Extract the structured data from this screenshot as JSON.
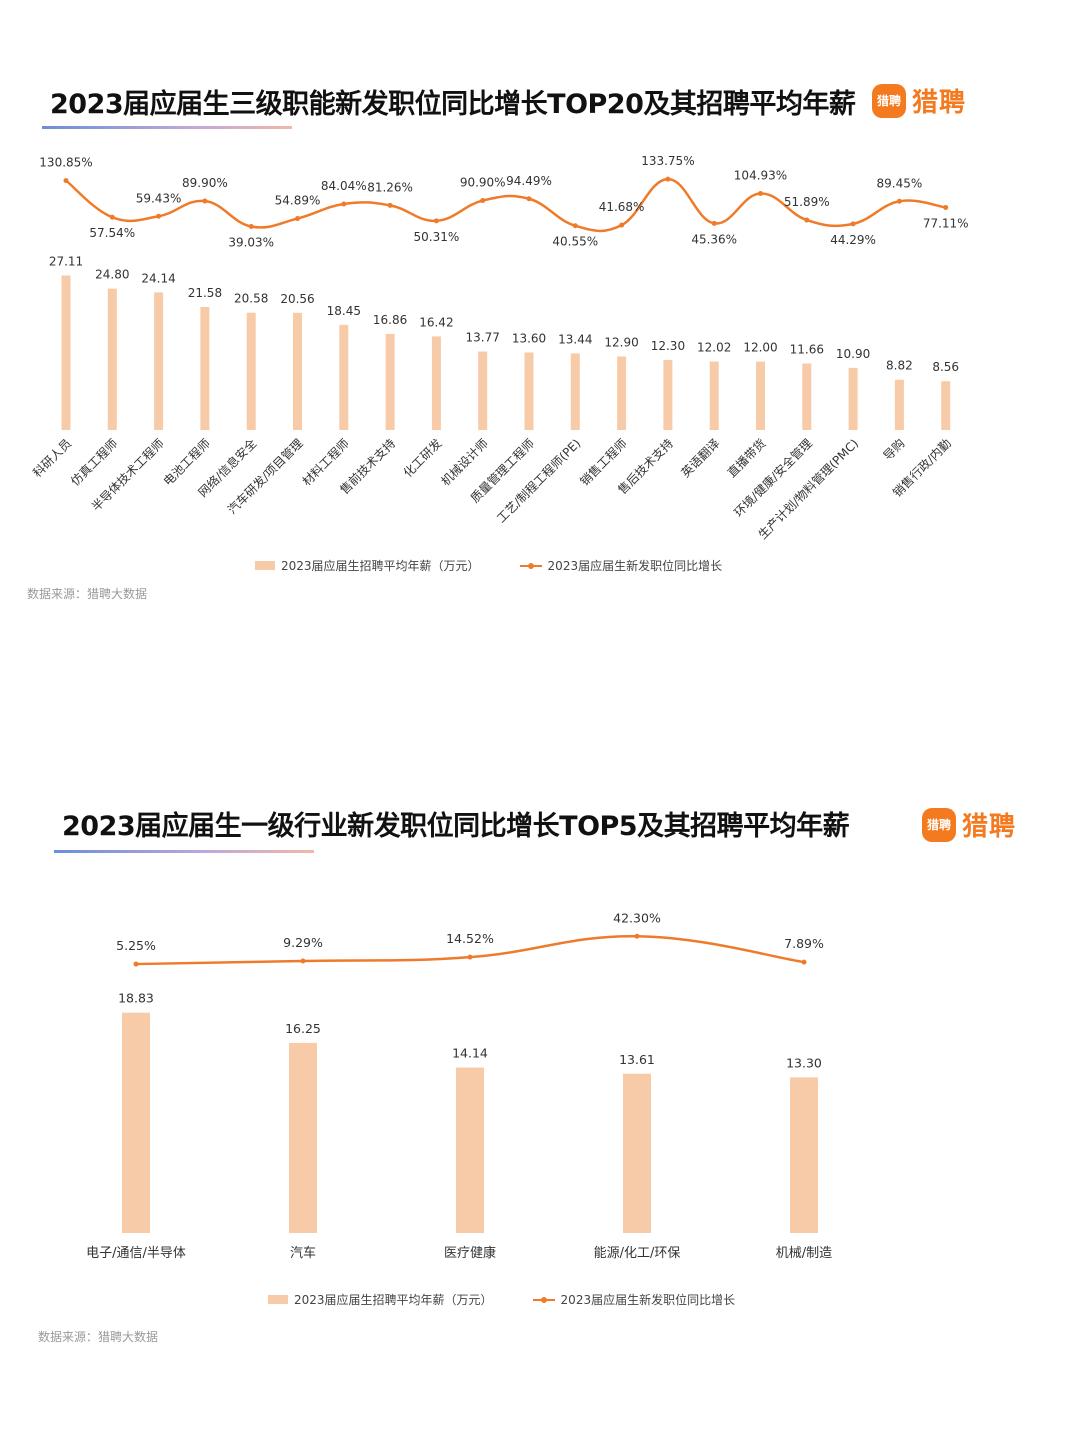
{
  "logo_text": "猎聘",
  "logo_badge": "猎聘",
  "source": "数据来源：猎聘大数据",
  "legend": {
    "bar": "2023届应届生招聘平均年薪（万元）",
    "line": "2023届应届生新发职位同比增长"
  },
  "colors": {
    "bar": "#f7cba8",
    "line": "#ef7b2a",
    "brand": "#f47a1f"
  },
  "chart_data": [
    {
      "type": "bar",
      "title": "2023届应届生三级职能新发职位同比增长TOP20及其招聘平均年薪",
      "categories": [
        "科研人员",
        "仿真工程师",
        "半导体技术工程师",
        "电池工程师",
        "网络/信息安全",
        "汽车研发/项目管理",
        "材料工程师",
        "售前技术支持",
        "化工研发",
        "机械设计师",
        "质量管理工程师",
        "工艺/制程工程师(PE)",
        "销售工程师",
        "售后技术支持",
        "英语翻译",
        "直播带货",
        "环境/健康/安全管理",
        "生产计划/物料管理(PMC)",
        "导购",
        "销售行政/内勤"
      ],
      "series": [
        {
          "name": "2023届应届生招聘平均年薪（万元）",
          "type": "bar",
          "values": [
            27.11,
            24.8,
            24.14,
            21.58,
            20.58,
            20.56,
            18.45,
            16.86,
            16.42,
            13.77,
            13.6,
            13.44,
            12.9,
            12.3,
            12.02,
            12.0,
            11.66,
            10.9,
            8.82,
            8.56
          ]
        },
        {
          "name": "2023届应届生新发职位同比增长",
          "type": "line",
          "values": [
            130.85,
            57.54,
            59.43,
            89.9,
            39.03,
            54.89,
            84.04,
            81.26,
            50.31,
            90.9,
            94.49,
            40.55,
            41.68,
            133.75,
            45.36,
            104.93,
            51.89,
            44.29,
            89.45,
            77.11
          ]
        }
      ],
      "bar_labels": [
        "27.11",
        "24.80",
        "24.14",
        "21.58",
        "20.58",
        "20.56",
        "18.45",
        "16.86",
        "16.42",
        "13.77",
        "13.60",
        "13.44",
        "12.90",
        "12.30",
        "12.02",
        "12.00",
        "11.66",
        "10.90",
        "8.82",
        "8.56"
      ],
      "line_labels": [
        "130.85%",
        "57.54%",
        "59.43%",
        "89.90%",
        "39.03%",
        "54.89%",
        "84.04%",
        "81.26%",
        "50.31%",
        "90.90%",
        "94.49%",
        "40.55%",
        "41.68%",
        "133.75%",
        "45.36%",
        "104.93%",
        "51.89%",
        "44.29%",
        "89.45%",
        "77.11%"
      ],
      "grid": false,
      "legend_position": "bottom"
    },
    {
      "type": "bar",
      "title": "2023届应届生一级行业新发职位同比增长TOP5及其招聘平均年薪",
      "categories": [
        "电子/通信/半导体",
        "汽车",
        "医疗健康",
        "能源/化工/环保",
        "机械/制造"
      ],
      "series": [
        {
          "name": "2023届应届生招聘平均年薪（万元）",
          "type": "bar",
          "values": [
            18.83,
            16.25,
            14.14,
            13.61,
            13.3
          ]
        },
        {
          "name": "2023届应届生新发职位同比增长",
          "type": "line",
          "values": [
            5.25,
            9.29,
            14.52,
            42.3,
            7.89
          ]
        }
      ],
      "bar_labels": [
        "18.83",
        "16.25",
        "14.14",
        "13.61",
        "13.30"
      ],
      "line_labels": [
        "5.25%",
        "9.29%",
        "14.52%",
        "42.30%",
        "7.89%"
      ],
      "grid": false,
      "legend_position": "bottom"
    }
  ]
}
